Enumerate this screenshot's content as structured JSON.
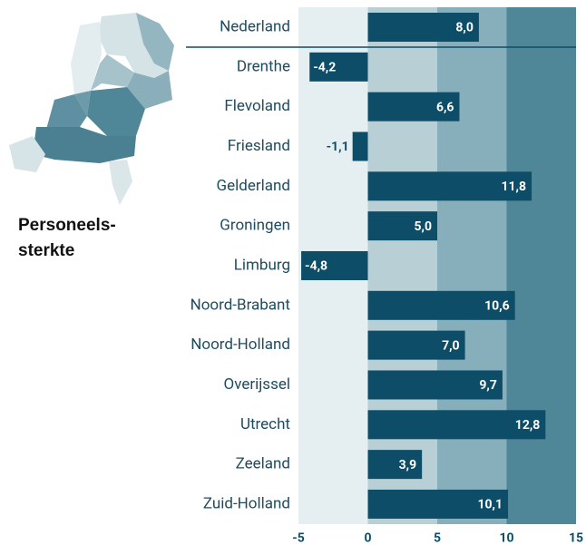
{
  "chart_data": {
    "type": "barh",
    "title": "Personeels-\nsterkte",
    "categories": [
      "Nederland",
      "Drenthe",
      "Flevoland",
      "Friesland",
      "Gelderland",
      "Groningen",
      "Limburg",
      "Noord-Brabant",
      "Noord-Holland",
      "Overijssel",
      "Utrecht",
      "Zeeland",
      "Zuid-Holland"
    ],
    "values": [
      8.0,
      -4.2,
      6.6,
      -1.1,
      11.8,
      5.0,
      -4.8,
      10.6,
      7.0,
      9.7,
      12.8,
      3.9,
      10.1
    ],
    "value_labels": [
      "8,0",
      "-4,2",
      "6,6",
      "-1,1",
      "11,8",
      "5,0",
      "-4,8",
      "10,6",
      "7,0",
      "9,7",
      "12,8",
      "3,9",
      "10,1"
    ],
    "color": "#0d4d68",
    "band_colors": [
      "#e5eef0",
      "#b9cfd6",
      "#86aebb",
      "#4f8698"
    ],
    "xlim": [
      -5,
      15
    ],
    "xticks": [
      -5,
      0,
      5,
      10,
      15
    ]
  }
}
